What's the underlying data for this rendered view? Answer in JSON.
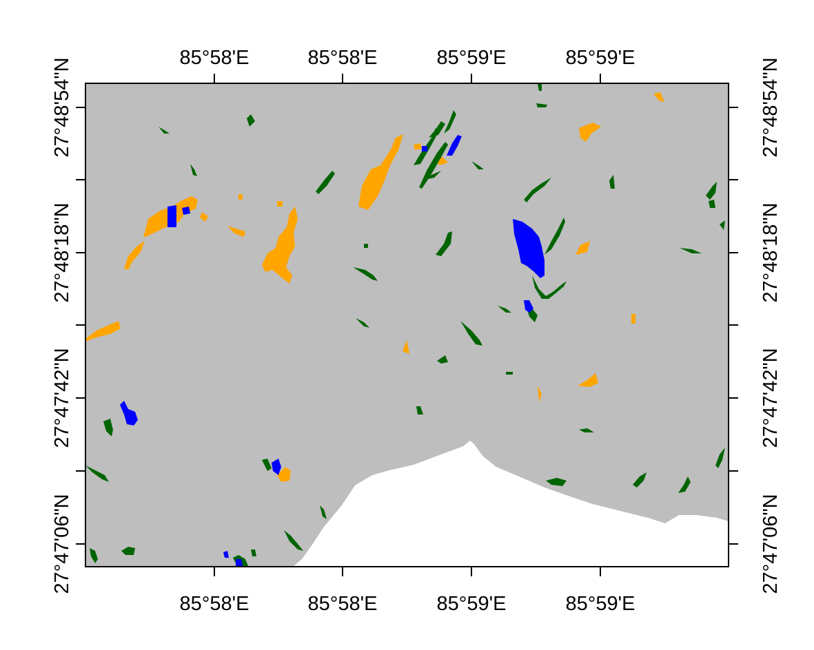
{
  "map": {
    "colors": {
      "background": "#ffffff",
      "study_area": "#bebebe",
      "class_orange": "#ffa500",
      "class_blue": "#0000ff",
      "class_green": "#006400",
      "frame": "#000000"
    },
    "axes": {
      "bottom_ticks": [
        "85°58'E",
        "85°58'E",
        "85°59'E",
        "85°59'E"
      ],
      "top_ticks": [
        "85°58'E",
        "85°58'E",
        "85°59'E",
        "85°59'E"
      ],
      "left_ticks": [
        "27°47'06\"N",
        "27°47'42\"N",
        "27°48'18\"N",
        "27°48'54\"N"
      ],
      "right_ticks": [
        "27°47'06\"N",
        "27°47'42\"N",
        "27°48'18\"N",
        "27°48'54\"N"
      ]
    }
  }
}
